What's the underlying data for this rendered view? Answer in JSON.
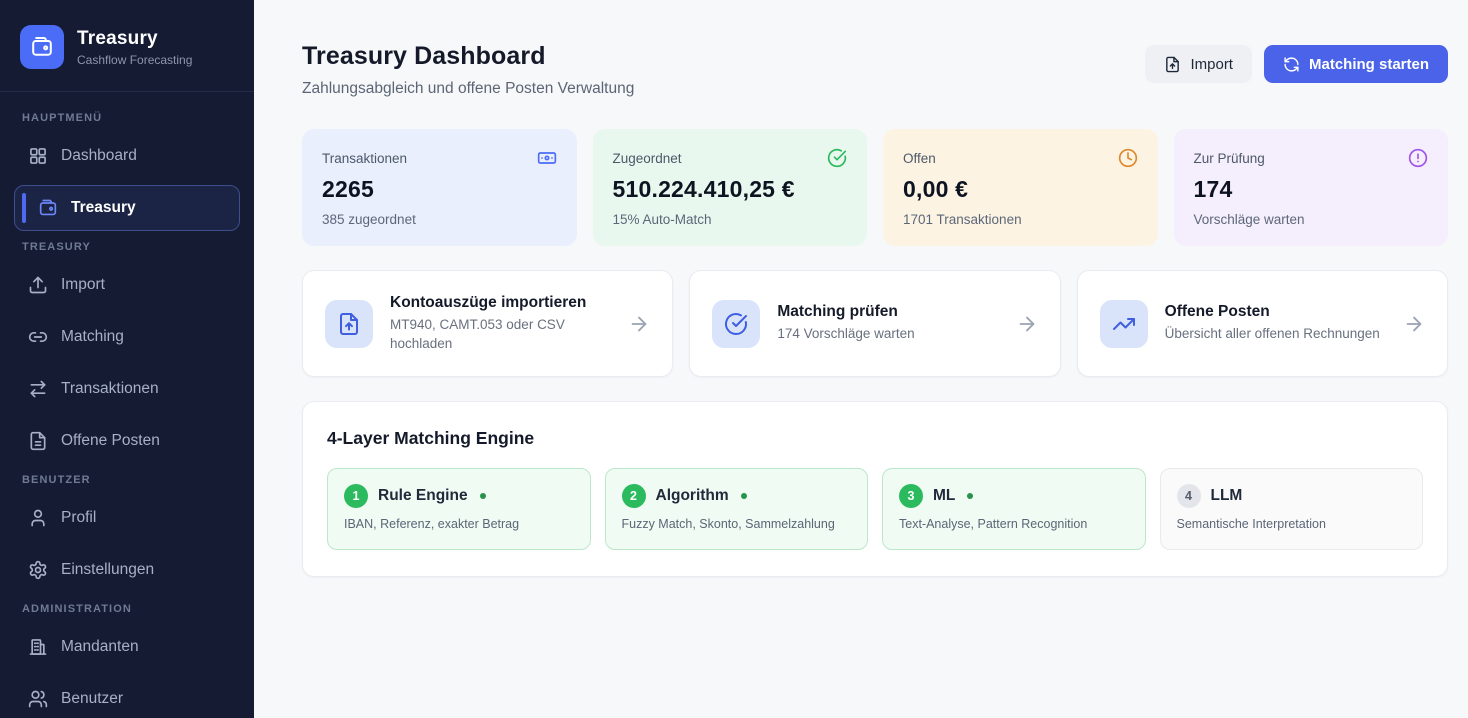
{
  "colors": {
    "sidebar_bg": "#141b33",
    "accent_blue": "#4a63e8",
    "logo_blue": "#4a6cf7",
    "success_green": "#2cb95d",
    "warning_orange": "#dd8a2f",
    "review_purple": "#9f55e6"
  },
  "sidebar": {
    "brand": {
      "name": "Treasury",
      "subtitle": "Cashflow Forecasting",
      "logo_icon": "wallet-icon"
    },
    "sections": [
      {
        "label": "HAUPTMENÜ",
        "items": [
          {
            "label": "Dashboard",
            "icon": "dashboard-grid-icon"
          },
          {
            "label": "Treasury",
            "icon": "wallet-icon",
            "active": true
          }
        ]
      },
      {
        "label": "TREASURY",
        "items": [
          {
            "label": "Import",
            "icon": "upload-icon"
          },
          {
            "label": "Matching",
            "icon": "link-icon"
          },
          {
            "label": "Transaktionen",
            "icon": "arrows-left-right-icon"
          },
          {
            "label": "Offene Posten",
            "icon": "document-icon"
          }
        ]
      },
      {
        "label": "BENUTZER",
        "items": [
          {
            "label": "Profil",
            "icon": "user-icon"
          },
          {
            "label": "Einstellungen",
            "icon": "gear-icon"
          }
        ]
      },
      {
        "label": "ADMINISTRATION",
        "items": [
          {
            "label": "Mandanten",
            "icon": "building-icon"
          },
          {
            "label": "Benutzer",
            "icon": "users-icon"
          }
        ]
      }
    ]
  },
  "header": {
    "title": "Treasury Dashboard",
    "subtitle": "Zahlungsabgleich und offene Posten Verwaltung",
    "import_button": "Import",
    "matching_button": "Matching starten"
  },
  "stats": [
    {
      "label": "Transaktionen",
      "value": "2265",
      "sub": "385 zugeordnet",
      "icon": "banknote-icon",
      "theme": "blue"
    },
    {
      "label": "Zugeordnet",
      "value": "510.224.410,25 €",
      "sub": "15% Auto-Match",
      "icon": "check-circle-icon",
      "theme": "green"
    },
    {
      "label": "Offen",
      "value": "0,00 €",
      "sub": "1701 Transaktionen",
      "icon": "clock-icon",
      "theme": "orange"
    },
    {
      "label": "Zur Prüfung",
      "value": "174",
      "sub": "Vorschläge warten",
      "icon": "alert-circle-icon",
      "theme": "purple"
    }
  ],
  "actions": [
    {
      "title": "Kontoauszüge importieren",
      "subtitle": "MT940, CAMT.053 oder CSV hochladen",
      "icon": "file-upload-icon"
    },
    {
      "title": "Matching prüfen",
      "subtitle": "174 Vorschläge warten",
      "icon": "check-circle-icon"
    },
    {
      "title": "Offene Posten",
      "subtitle": "Übersicht aller offenen Rechnungen",
      "icon": "trending-up-icon"
    }
  ],
  "engine": {
    "title": "4-Layer Matching Engine",
    "layers": [
      {
        "number": "1",
        "name": "Rule Engine",
        "description": "IBAN, Referenz, exakter Betrag",
        "active": true
      },
      {
        "number": "2",
        "name": "Algorithm",
        "description": "Fuzzy Match, Skonto, Sammelzahlung",
        "active": true
      },
      {
        "number": "3",
        "name": "ML",
        "description": "Text-Analyse, Pattern Recognition",
        "active": true
      },
      {
        "number": "4",
        "name": "LLM",
        "description": "Semantische Interpretation",
        "active": false
      }
    ]
  }
}
